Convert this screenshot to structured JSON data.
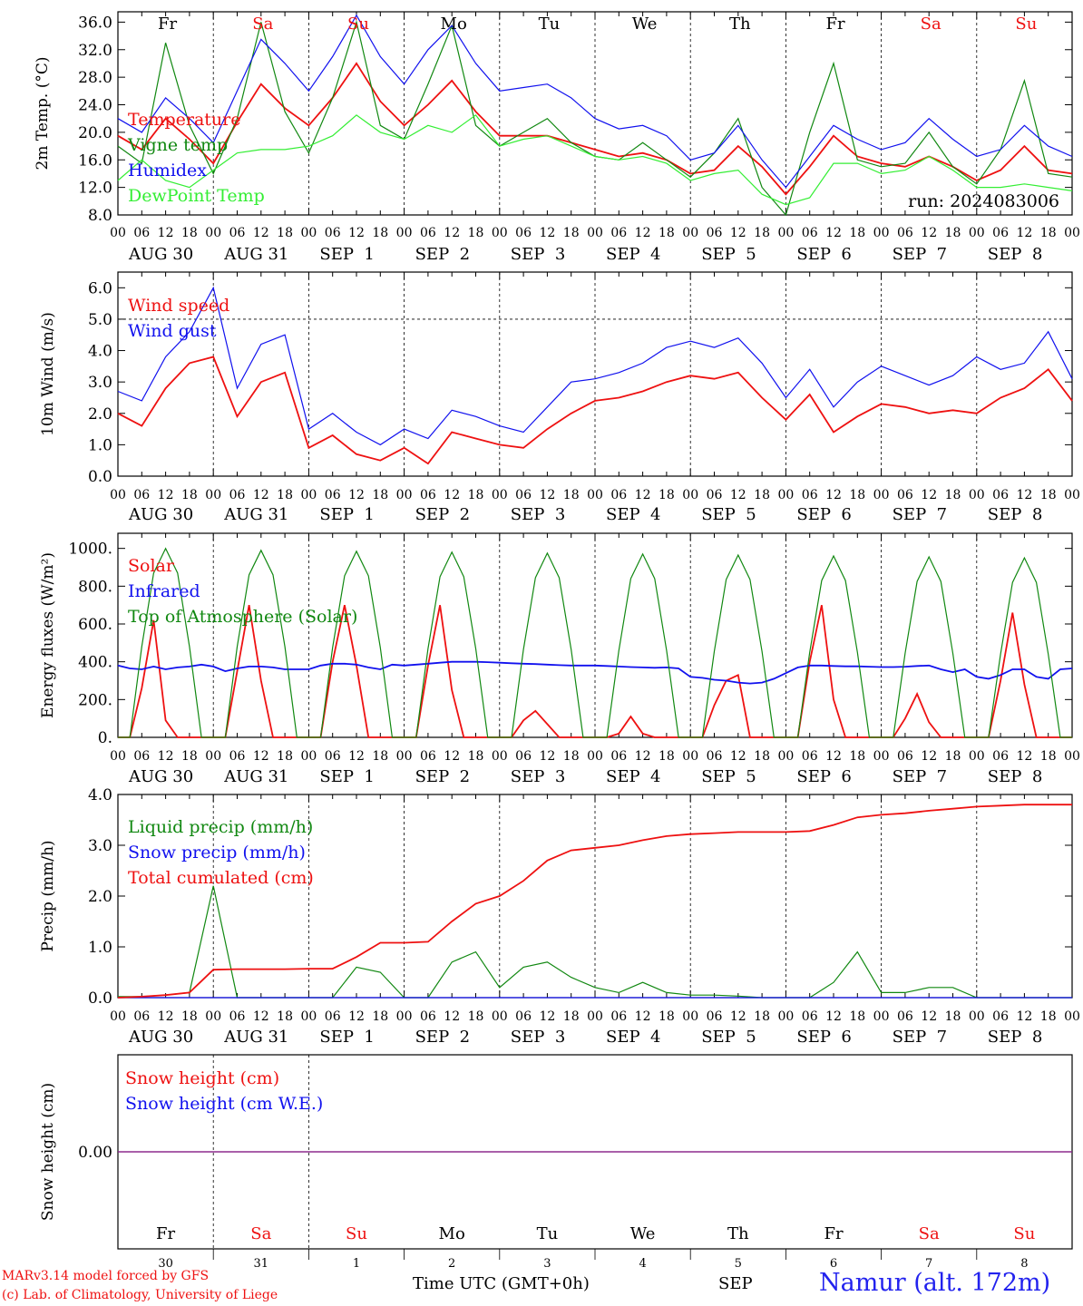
{
  "run_label": "run: 2024083006",
  "day_names": [
    {
      "name": "Fr",
      "color": "#000000"
    },
    {
      "name": "Sa",
      "color": "#ee1111"
    },
    {
      "name": "Su",
      "color": "#ee1111"
    },
    {
      "name": "Mo",
      "color": "#000000"
    },
    {
      "name": "Tu",
      "color": "#000000"
    },
    {
      "name": "We",
      "color": "#000000"
    },
    {
      "name": "Th",
      "color": "#000000"
    },
    {
      "name": "Fr",
      "color": "#000000"
    },
    {
      "name": "Sa",
      "color": "#ee1111"
    },
    {
      "name": "Su",
      "color": "#ee1111"
    }
  ],
  "date_labels": [
    "AUG 30",
    "AUG 31",
    "SEP  1",
    "SEP  2",
    "SEP  3",
    "SEP  4",
    "SEP  5",
    "SEP  6",
    "SEP  7",
    "SEP  8"
  ],
  "hour_labels": [
    "00",
    "06",
    "12",
    "18"
  ],
  "hour_end_label": "00",
  "bottom_day_numbers": [
    "30",
    "31",
    "1",
    "2",
    "3",
    "4",
    "5",
    "6",
    "7",
    "8"
  ],
  "footer": {
    "credit_line1": "MARv3.14 model forced by GFS",
    "credit_line2": "(c) Lab. of Climatology, University of Liege",
    "time_axis_label": "Time UTC (GMT+0h)",
    "month_label": "SEP",
    "station": "Namur (alt. 172m)"
  },
  "chart_data": [
    {
      "type": "line",
      "ylabel": "2m Temp. (°C)",
      "ylim": [
        8,
        37.5
      ],
      "yticks": [
        8.0,
        12.0,
        16.0,
        20.0,
        24.0,
        28.0,
        32.0,
        36.0
      ],
      "ytick_labels": [
        "8.0",
        "12.0",
        "16.0",
        "20.0",
        "24.0",
        "28.0",
        "32.0",
        "36.0"
      ],
      "x_hours_per_point": 6,
      "series": [
        {
          "name": "Temperature",
          "color": "#ee1111",
          "values": [
            19.5,
            17.5,
            22.0,
            19.0,
            15.5,
            21.5,
            27.0,
            23.5,
            21.0,
            25.0,
            30.0,
            24.5,
            21.0,
            24.0,
            27.5,
            23.0,
            19.5,
            19.5,
            19.5,
            18.5,
            17.5,
            16.5,
            17.0,
            16.0,
            14.0,
            14.5,
            18.0,
            15.0,
            11.0,
            15.0,
            19.5,
            16.5,
            15.5,
            15.0,
            16.5,
            15.0,
            13.0,
            14.5,
            18.0,
            14.5,
            14.0
          ]
        },
        {
          "name": "Vigne temp",
          "color": "#118811",
          "values": [
            18.0,
            15.5,
            33.0,
            21.0,
            14.0,
            22.0,
            36.0,
            23.0,
            17.0,
            25.0,
            36.0,
            21.0,
            19.0,
            27.0,
            35.5,
            21.0,
            18.0,
            20.0,
            22.0,
            18.5,
            16.5,
            16.0,
            18.5,
            16.0,
            13.5,
            17.0,
            22.0,
            12.0,
            8.0,
            20.0,
            30.0,
            16.0,
            15.0,
            15.5,
            20.0,
            15.0,
            12.5,
            17.5,
            27.5,
            14.0,
            13.5
          ]
        },
        {
          "name": "Humidex",
          "color": "#1111ee",
          "values": [
            22.0,
            20.0,
            25.0,
            22.0,
            18.5,
            26.0,
            33.5,
            30.0,
            26.0,
            31.0,
            37.0,
            31.0,
            27.0,
            32.0,
            35.5,
            30.0,
            26.0,
            26.5,
            27.0,
            25.0,
            22.0,
            20.5,
            21.0,
            19.5,
            16.0,
            17.0,
            21.0,
            16.0,
            12.0,
            16.5,
            21.0,
            19.0,
            17.5,
            18.5,
            22.0,
            19.0,
            16.5,
            17.5,
            21.0,
            18.0,
            16.5
          ]
        },
        {
          "name": "DewPoint Temp",
          "color": "#33ee33",
          "values": [
            13.0,
            16.0,
            13.0,
            12.0,
            14.5,
            17.0,
            17.5,
            17.5,
            18.0,
            19.5,
            22.5,
            20.0,
            19.0,
            21.0,
            20.0,
            22.5,
            18.0,
            19.0,
            19.5,
            18.0,
            16.5,
            16.0,
            16.5,
            15.5,
            13.0,
            14.0,
            14.5,
            11.0,
            9.5,
            10.5,
            15.5,
            15.5,
            14.0,
            14.5,
            16.5,
            14.5,
            12.0,
            12.0,
            12.5,
            12.0,
            11.5
          ]
        }
      ]
    },
    {
      "type": "line",
      "ylabel": "10m Wind (m/s)",
      "ylim": [
        0,
        6.5
      ],
      "yticks": [
        0.0,
        1.0,
        2.0,
        3.0,
        4.0,
        5.0,
        6.0
      ],
      "ytick_labels": [
        "0.0",
        "1.0",
        "2.0",
        "3.0",
        "4.0",
        "5.0",
        "6.0"
      ],
      "reference_line": 5.0,
      "x_hours_per_point": 6,
      "series": [
        {
          "name": "Wind speed",
          "color": "#ee1111",
          "values": [
            2.0,
            1.6,
            2.8,
            3.6,
            3.8,
            1.9,
            3.0,
            3.3,
            0.9,
            1.3,
            0.7,
            0.5,
            0.9,
            0.4,
            1.4,
            1.2,
            1.0,
            0.9,
            1.5,
            2.0,
            2.4,
            2.5,
            2.7,
            3.0,
            3.2,
            3.1,
            3.3,
            2.5,
            1.8,
            2.6,
            1.4,
            1.9,
            2.3,
            2.2,
            2.0,
            2.1,
            2.0,
            2.5,
            2.8,
            3.4,
            2.4
          ]
        },
        {
          "name": "Wind gust",
          "color": "#1111ee",
          "values": [
            2.7,
            2.4,
            3.8,
            4.6,
            6.0,
            2.8,
            4.2,
            4.5,
            1.5,
            2.0,
            1.4,
            1.0,
            1.5,
            1.2,
            2.1,
            1.9,
            1.6,
            1.4,
            2.2,
            3.0,
            3.1,
            3.3,
            3.6,
            4.1,
            4.3,
            4.1,
            4.4,
            3.6,
            2.5,
            3.4,
            2.2,
            3.0,
            3.5,
            3.2,
            2.9,
            3.2,
            3.8,
            3.4,
            3.6,
            4.6,
            3.1
          ]
        }
      ]
    },
    {
      "type": "line",
      "ylabel": "Energy fluxes (W/m²)",
      "ylim": [
        0,
        1080
      ],
      "yticks": [
        0,
        200,
        400,
        600,
        800,
        1000
      ],
      "ytick_labels": [
        "0.",
        "200.",
        "400.",
        "600.",
        "800.",
        "1000."
      ],
      "x_hours_per_point": 3,
      "series": [
        {
          "name": "Solar",
          "color": "#ee1111",
          "values": [
            0,
            0,
            260,
            620,
            90,
            0,
            0,
            0,
            0,
            0,
            350,
            700,
            300,
            0,
            0,
            0,
            0,
            0,
            400,
            700,
            380,
            0,
            0,
            0,
            0,
            0,
            380,
            700,
            250,
            0,
            0,
            0,
            0,
            0,
            90,
            140,
            70,
            0,
            0,
            0,
            0,
            0,
            20,
            110,
            20,
            0,
            0,
            0,
            0,
            0,
            170,
            300,
            330,
            0,
            0,
            0,
            0,
            0,
            400,
            700,
            200,
            0,
            0,
            0,
            0,
            0,
            100,
            230,
            80,
            0,
            0,
            0,
            0,
            0,
            300,
            660,
            280,
            0,
            0,
            0,
            0
          ]
        },
        {
          "name": "Infrared",
          "color": "#1111ee",
          "values": [
            380,
            365,
            360,
            375,
            360,
            370,
            375,
            385,
            375,
            350,
            365,
            375,
            375,
            370,
            360,
            360,
            360,
            380,
            390,
            390,
            385,
            370,
            360,
            385,
            380,
            385,
            390,
            395,
            400,
            400,
            400,
            398,
            395,
            392,
            390,
            388,
            385,
            382,
            380,
            380,
            380,
            378,
            375,
            372,
            370,
            368,
            370,
            365,
            320,
            315,
            305,
            300,
            290,
            285,
            290,
            310,
            340,
            370,
            380,
            380,
            378,
            376,
            376,
            374,
            372,
            372,
            374,
            378,
            380,
            360,
            345,
            360,
            320,
            310,
            330,
            360,
            360,
            320,
            310,
            360,
            365
          ]
        },
        {
          "name": "Top of Atmosphere (Solar)",
          "color": "#118811",
          "values": [
            0,
            0,
            480,
            870,
            1000,
            870,
            480,
            0,
            0,
            0,
            480,
            860,
            990,
            860,
            480,
            0,
            0,
            0,
            475,
            855,
            985,
            855,
            475,
            0,
            0,
            0,
            470,
            850,
            980,
            850,
            470,
            0,
            0,
            0,
            465,
            845,
            975,
            845,
            465,
            0,
            0,
            0,
            460,
            840,
            970,
            840,
            460,
            0,
            0,
            0,
            455,
            835,
            965,
            835,
            455,
            0,
            0,
            0,
            450,
            830,
            960,
            830,
            450,
            0,
            0,
            0,
            445,
            825,
            955,
            825,
            445,
            0,
            0,
            0,
            440,
            820,
            950,
            820,
            440,
            0,
            0
          ]
        }
      ]
    },
    {
      "type": "line",
      "ylabel": "Precip (mm/h)",
      "ylim": [
        0,
        4.0
      ],
      "yticks": [
        0.0,
        1.0,
        2.0,
        3.0,
        4.0
      ],
      "ytick_labels": [
        "0.0",
        "1.0",
        "2.0",
        "3.0",
        "4.0"
      ],
      "x_hours_per_point": 6,
      "series": [
        {
          "name": "Liquid precip (mm/h)",
          "color": "#118811",
          "values": [
            0.02,
            0.02,
            0.05,
            0.1,
            2.2,
            0.0,
            0.0,
            0.0,
            0.0,
            0.0,
            0.6,
            0.5,
            0.0,
            0.0,
            0.7,
            0.9,
            0.2,
            0.6,
            0.7,
            0.4,
            0.2,
            0.1,
            0.3,
            0.1,
            0.05,
            0.05,
            0.03,
            0.0,
            0.0,
            0.0,
            0.3,
            0.9,
            0.1,
            0.1,
            0.2,
            0.2,
            0.0,
            0.0,
            0.0,
            0.0,
            0.0
          ]
        },
        {
          "name": "Snow precip (mm/h)",
          "color": "#1111ee",
          "values": [
            0.0,
            0.0,
            0.0,
            0.0,
            0.0,
            0.0,
            0.0,
            0.0,
            0.0,
            0.0,
            0.0,
            0.0,
            0.0,
            0.0,
            0.0,
            0.0,
            0.0,
            0.0,
            0.0,
            0.0,
            0.0,
            0.0,
            0.0,
            0.0,
            0.0,
            0.0,
            0.0,
            0.0,
            0.0,
            0.0,
            0.0,
            0.0,
            0.0,
            0.0,
            0.0,
            0.0,
            0.0,
            0.0,
            0.0,
            0.0,
            0.0
          ]
        },
        {
          "name": "Total cumulated (cm)",
          "color": "#ee1111",
          "values": [
            0.0,
            0.02,
            0.05,
            0.1,
            0.55,
            0.56,
            0.56,
            0.56,
            0.57,
            0.57,
            0.8,
            1.08,
            1.08,
            1.1,
            1.5,
            1.85,
            2.0,
            2.3,
            2.7,
            2.9,
            2.95,
            3.0,
            3.1,
            3.18,
            3.22,
            3.24,
            3.26,
            3.26,
            3.26,
            3.28,
            3.4,
            3.55,
            3.6,
            3.63,
            3.68,
            3.72,
            3.76,
            3.78,
            3.8,
            3.8,
            3.8
          ]
        }
      ]
    },
    {
      "type": "line",
      "ylabel": "Snow height (cm)",
      "ylim": [
        -1,
        1
      ],
      "yticks": [
        0.0
      ],
      "ytick_labels": [
        "0.00"
      ],
      "x_hours_per_point": 6,
      "series": [
        {
          "name": "Snow height (cm)",
          "color": "#ee1111",
          "values": [
            0,
            0
          ]
        },
        {
          "name": "Snow height (cm W.E.)",
          "color": "#1111ee",
          "values": [
            0,
            0
          ]
        }
      ]
    }
  ]
}
